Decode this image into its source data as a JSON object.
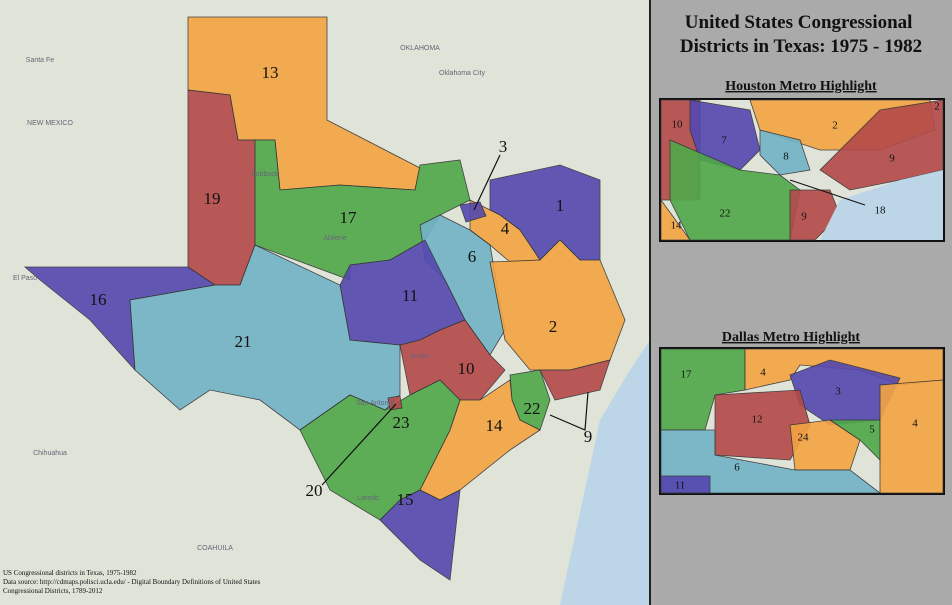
{
  "title": "United States Congressional Districts in Texas: 1975 - 1982",
  "main_map": {
    "district_labels": [
      "13",
      "19",
      "17",
      "3",
      "1",
      "4",
      "6",
      "16",
      "11",
      "21",
      "2",
      "10",
      "22",
      "9",
      "14",
      "23",
      "20",
      "15"
    ],
    "place_labels": [
      "NEW MEXICO",
      "OKLAHOMA",
      "Oklahoma City",
      "Santa Fe",
      "Chihuahua",
      "COAHUILA",
      "El Paso",
      "Lubbock",
      "Abilene",
      "Austin",
      "San Antonio",
      "Laredo"
    ]
  },
  "houston_inset": {
    "heading": "Houston Metro Highlight",
    "labels": [
      "10",
      "7",
      "2",
      "2",
      "8",
      "9",
      "18",
      "22",
      "14",
      "9"
    ]
  },
  "dallas_inset": {
    "heading": "Dallas Metro Highlight",
    "labels": [
      "17",
      "4",
      "3",
      "12",
      "24",
      "5",
      "4",
      "6",
      "11"
    ]
  },
  "source_note": [
    "US Congressional districts in Texas, 1975-1982",
    "Data source: http://cdmaps.polisci.ucla.edu/ - Digital Boundary Definitions of United States",
    "Congressional Districts, 1789-2012"
  ]
}
